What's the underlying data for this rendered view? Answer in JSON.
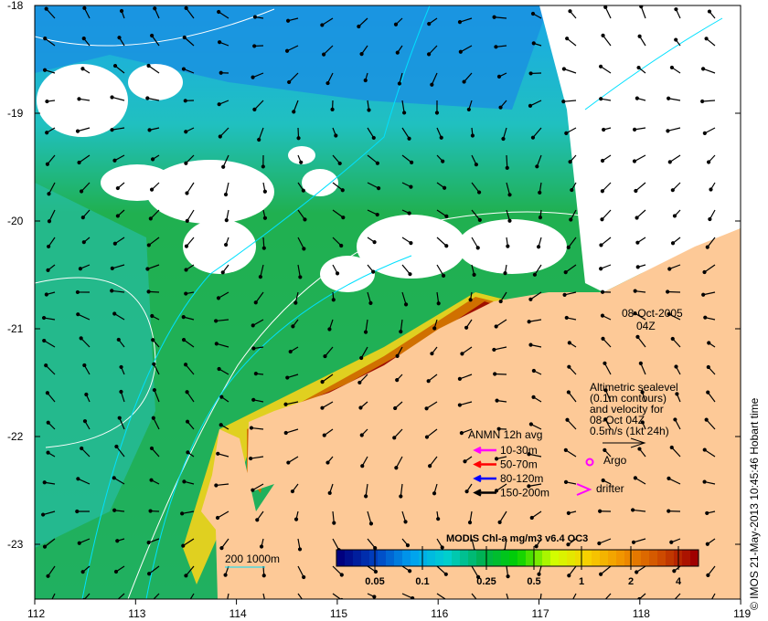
{
  "map": {
    "date": "08-Oct-2005",
    "time": "04Z",
    "x_ticks": [
      "112",
      "113",
      "114",
      "115",
      "116",
      "117",
      "118",
      "119"
    ],
    "y_ticks": [
      "-18",
      "-19",
      "-20",
      "-21",
      "-22",
      "-23"
    ],
    "credit": "© IMOS 21-May-2013 10:45:46 Hobart time",
    "scale_label": "200  1000m"
  },
  "altimetry": {
    "lines": [
      "Altimetric sealevel",
      "(0.1m contours)",
      "and velocity for",
      "08-Oct 04Z",
      "0.5m/s (1kt 24h)"
    ]
  },
  "legend": {
    "title": "ANMN 12h avg",
    "items": [
      {
        "label": "10-30m",
        "color": "#ff00ff"
      },
      {
        "label": "50-70m",
        "color": "#ff0000"
      },
      {
        "label": "80-120m",
        "color": "#0000ff"
      },
      {
        "label": "150-200m",
        "color": "#000000"
      }
    ],
    "argo": "Argo",
    "drifter": "drifter"
  },
  "colorbar": {
    "title": "MODIS Chl-a mg/m3 v6.4 OC3",
    "ticks": [
      "0.05",
      "0.1",
      "0.25",
      "0.5",
      "1",
      "2",
      "4"
    ],
    "colors": [
      "#00007f",
      "#0040c0",
      "#00a0f0",
      "#00d0d0",
      "#00b050",
      "#00d000",
      "#d0ff00",
      "#f8d000",
      "#f09000",
      "#d05000",
      "#a00000"
    ]
  }
}
